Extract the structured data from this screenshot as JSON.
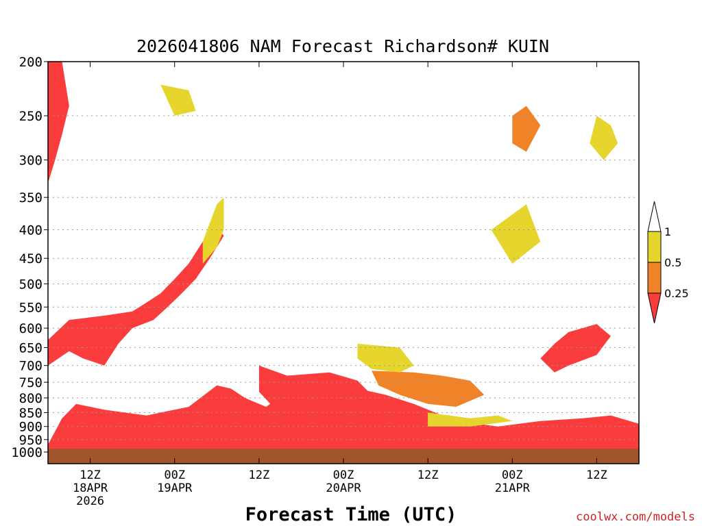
{
  "chart_data": {
    "type": "heatmap",
    "title": "2026041806 NAM Forecast Richardson# KUIN",
    "xlabel": "Forecast Time (UTC)",
    "ylabel": "",
    "credit": "coolwx.com/models",
    "y_axis": {
      "scale": "pressure (log-like), inverted",
      "ticks": [
        200,
        250,
        300,
        350,
        400,
        450,
        500,
        550,
        600,
        650,
        700,
        750,
        800,
        850,
        900,
        950,
        1000
      ],
      "range": [
        200,
        1000
      ]
    },
    "x_axis": {
      "range_hours": [
        0,
        84
      ],
      "ticks": [
        {
          "hour": 6,
          "lines": [
            "12Z",
            "18APR",
            "2026"
          ]
        },
        {
          "hour": 18,
          "lines": [
            "00Z",
            "19APR"
          ]
        },
        {
          "hour": 30,
          "lines": [
            "12Z"
          ]
        },
        {
          "hour": 42,
          "lines": [
            "00Z",
            "20APR"
          ]
        },
        {
          "hour": 54,
          "lines": [
            "12Z"
          ]
        },
        {
          "hour": 66,
          "lines": [
            "00Z",
            "21APR"
          ]
        },
        {
          "hour": 78,
          "lines": [
            "12Z"
          ]
        }
      ]
    },
    "grid": "dotted horizontal at pressure ticks",
    "legend": {
      "placement": "right",
      "labels": [
        "1",
        "0.5",
        "0.25"
      ],
      "bins": [
        {
          "range": "> 1",
          "color": "#ffffff"
        },
        {
          "range": "0.5 - 1",
          "color": "#e6d52d"
        },
        {
          "range": "0.25 - 0.5",
          "color": "#f08228"
        },
        {
          "range": "< 0.25",
          "color": "#fa3c3c"
        }
      ]
    },
    "colors": {
      "low": "#fa3c3c",
      "mid": "#f08228",
      "high": "#e6d52d",
      "ground": "#a0552d"
    },
    "regions": [
      {
        "bin": "low",
        "points": [
          [
            0,
            970
          ],
          [
            2,
            870
          ],
          [
            4,
            820
          ],
          [
            8,
            840
          ],
          [
            14,
            860
          ],
          [
            20,
            830
          ],
          [
            24,
            760
          ],
          [
            26,
            770
          ],
          [
            28,
            800
          ],
          [
            31,
            830
          ],
          [
            34,
            780
          ],
          [
            38,
            740
          ],
          [
            44,
            770
          ],
          [
            48,
            790
          ],
          [
            52,
            820
          ],
          [
            58,
            880
          ],
          [
            64,
            900
          ],
          [
            70,
            880
          ],
          [
            76,
            870
          ],
          [
            80,
            860
          ],
          [
            84,
            890
          ],
          [
            84,
            1000
          ],
          [
            0,
            1000
          ]
        ]
      },
      {
        "bin": "low",
        "points": [
          [
            0,
            630
          ],
          [
            3,
            580
          ],
          [
            8,
            570
          ],
          [
            12,
            560
          ],
          [
            14,
            540
          ],
          [
            16,
            520
          ],
          [
            18,
            490
          ],
          [
            20,
            460
          ],
          [
            22,
            420
          ],
          [
            24,
            395
          ],
          [
            25,
            410
          ],
          [
            23,
            450
          ],
          [
            21,
            490
          ],
          [
            19,
            520
          ],
          [
            17,
            550
          ],
          [
            15,
            580
          ],
          [
            12,
            600
          ],
          [
            10,
            640
          ],
          [
            8,
            700
          ],
          [
            5,
            680
          ],
          [
            3,
            660
          ],
          [
            0,
            700
          ]
        ]
      },
      {
        "bin": "low",
        "points": [
          [
            30,
            700
          ],
          [
            34,
            730
          ],
          [
            40,
            720
          ],
          [
            44,
            745
          ],
          [
            46,
            790
          ],
          [
            42,
            830
          ],
          [
            36,
            850
          ],
          [
            32,
            830
          ],
          [
            30,
            780
          ]
        ]
      },
      {
        "bin": "mid",
        "points": [
          [
            46,
            715
          ],
          [
            52,
            720
          ],
          [
            56,
            730
          ],
          [
            60,
            745
          ],
          [
            62,
            790
          ],
          [
            58,
            830
          ],
          [
            54,
            820
          ],
          [
            50,
            790
          ],
          [
            47,
            760
          ]
        ]
      },
      {
        "bin": "high",
        "points": [
          [
            44,
            640
          ],
          [
            50,
            650
          ],
          [
            52,
            700
          ],
          [
            50,
            720
          ],
          [
            46,
            710
          ],
          [
            44,
            680
          ]
        ]
      },
      {
        "bin": "high",
        "points": [
          [
            54,
            850
          ],
          [
            60,
            870
          ],
          [
            64,
            860
          ],
          [
            66,
            880
          ],
          [
            60,
            900
          ],
          [
            54,
            900
          ]
        ]
      },
      {
        "bin": "low",
        "points": [
          [
            74,
            610
          ],
          [
            78,
            590
          ],
          [
            80,
            620
          ],
          [
            78,
            670
          ],
          [
            74,
            700
          ],
          [
            72,
            720
          ],
          [
            70,
            680
          ],
          [
            72,
            640
          ]
        ]
      },
      {
        "bin": "high",
        "points": [
          [
            22,
            420
          ],
          [
            24,
            360
          ],
          [
            25,
            350
          ],
          [
            25,
            400
          ],
          [
            24,
            430
          ],
          [
            22,
            460
          ]
        ]
      },
      {
        "bin": "high",
        "points": [
          [
            16,
            220
          ],
          [
            20,
            225
          ],
          [
            21,
            245
          ],
          [
            18,
            250
          ]
        ]
      },
      {
        "bin": "low",
        "points": [
          [
            0,
            200
          ],
          [
            2,
            200
          ],
          [
            3,
            240
          ],
          [
            2,
            270
          ],
          [
            1,
            300
          ],
          [
            0,
            330
          ]
        ]
      },
      {
        "bin": "high",
        "points": [
          [
            63,
            400
          ],
          [
            66,
            460
          ],
          [
            70,
            420
          ],
          [
            68,
            360
          ]
        ]
      },
      {
        "bin": "mid",
        "points": [
          [
            66,
            250
          ],
          [
            68,
            240
          ],
          [
            70,
            260
          ],
          [
            68,
            290
          ],
          [
            66,
            280
          ]
        ]
      },
      {
        "bin": "high",
        "points": [
          [
            78,
            250
          ],
          [
            80,
            260
          ],
          [
            81,
            280
          ],
          [
            79,
            300
          ],
          [
            77,
            280
          ]
        ]
      }
    ]
  }
}
